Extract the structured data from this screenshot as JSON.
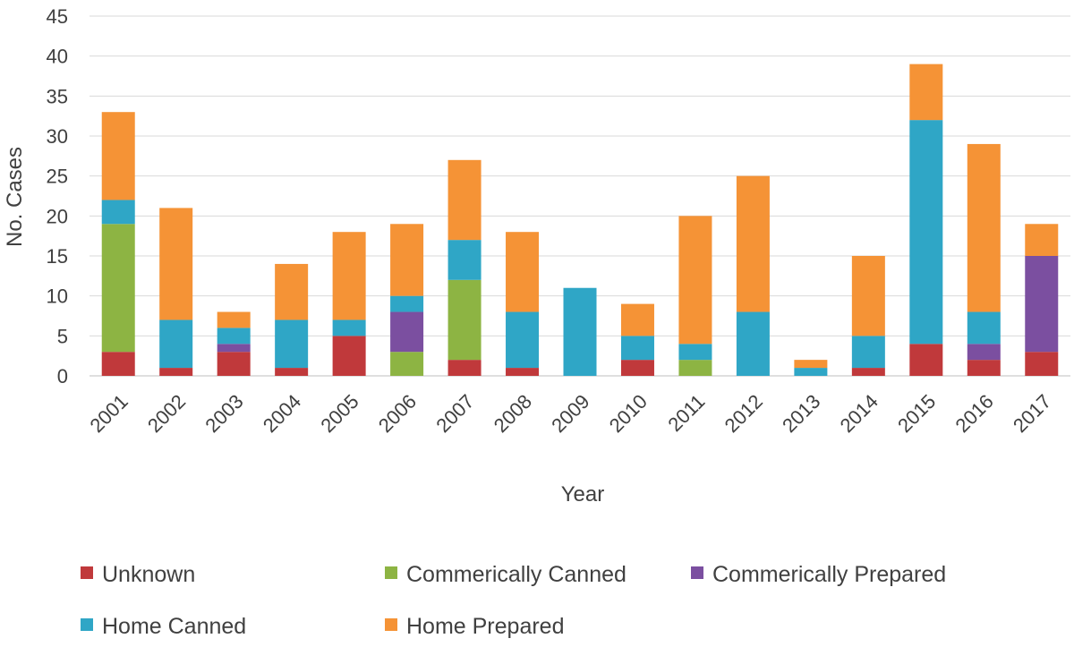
{
  "chart_data": {
    "type": "bar",
    "stacked": true,
    "title": "",
    "xlabel": "Year",
    "ylabel": "No. Cases",
    "ylim": [
      0,
      45
    ],
    "yticks": [
      0,
      5,
      10,
      15,
      20,
      25,
      30,
      35,
      40,
      45
    ],
    "grid": true,
    "legend_position": "bottom",
    "categories": [
      "2001",
      "2002",
      "2003",
      "2004",
      "2005",
      "2006",
      "2007",
      "2008",
      "2009",
      "2010",
      "2011",
      "2012",
      "2013",
      "2014",
      "2015",
      "2016",
      "2017"
    ],
    "series": [
      {
        "name": "Unknown",
        "color": "#C0393B",
        "values": [
          3,
          1,
          3,
          1,
          5,
          0,
          2,
          1,
          0,
          2,
          0,
          0,
          0,
          1,
          4,
          2,
          3
        ]
      },
      {
        "name": "Commerically Canned",
        "color": "#8DB443",
        "values": [
          16,
          0,
          0,
          0,
          0,
          3,
          10,
          0,
          0,
          0,
          2,
          0,
          0,
          0,
          0,
          0,
          0
        ]
      },
      {
        "name": "Commerically Prepared",
        "color": "#7B4FA0",
        "values": [
          0,
          0,
          1,
          0,
          0,
          5,
          0,
          0,
          0,
          0,
          0,
          0,
          0,
          0,
          0,
          2,
          12
        ]
      },
      {
        "name": "Home Canned",
        "color": "#2FA6C6",
        "values": [
          3,
          6,
          2,
          6,
          2,
          2,
          5,
          7,
          11,
          3,
          2,
          8,
          1,
          4,
          28,
          4,
          0
        ]
      },
      {
        "name": "Home Prepared",
        "color": "#F59336",
        "values": [
          11,
          14,
          2,
          7,
          11,
          9,
          10,
          10,
          0,
          4,
          16,
          17,
          1,
          10,
          7,
          21,
          4
        ]
      }
    ]
  }
}
